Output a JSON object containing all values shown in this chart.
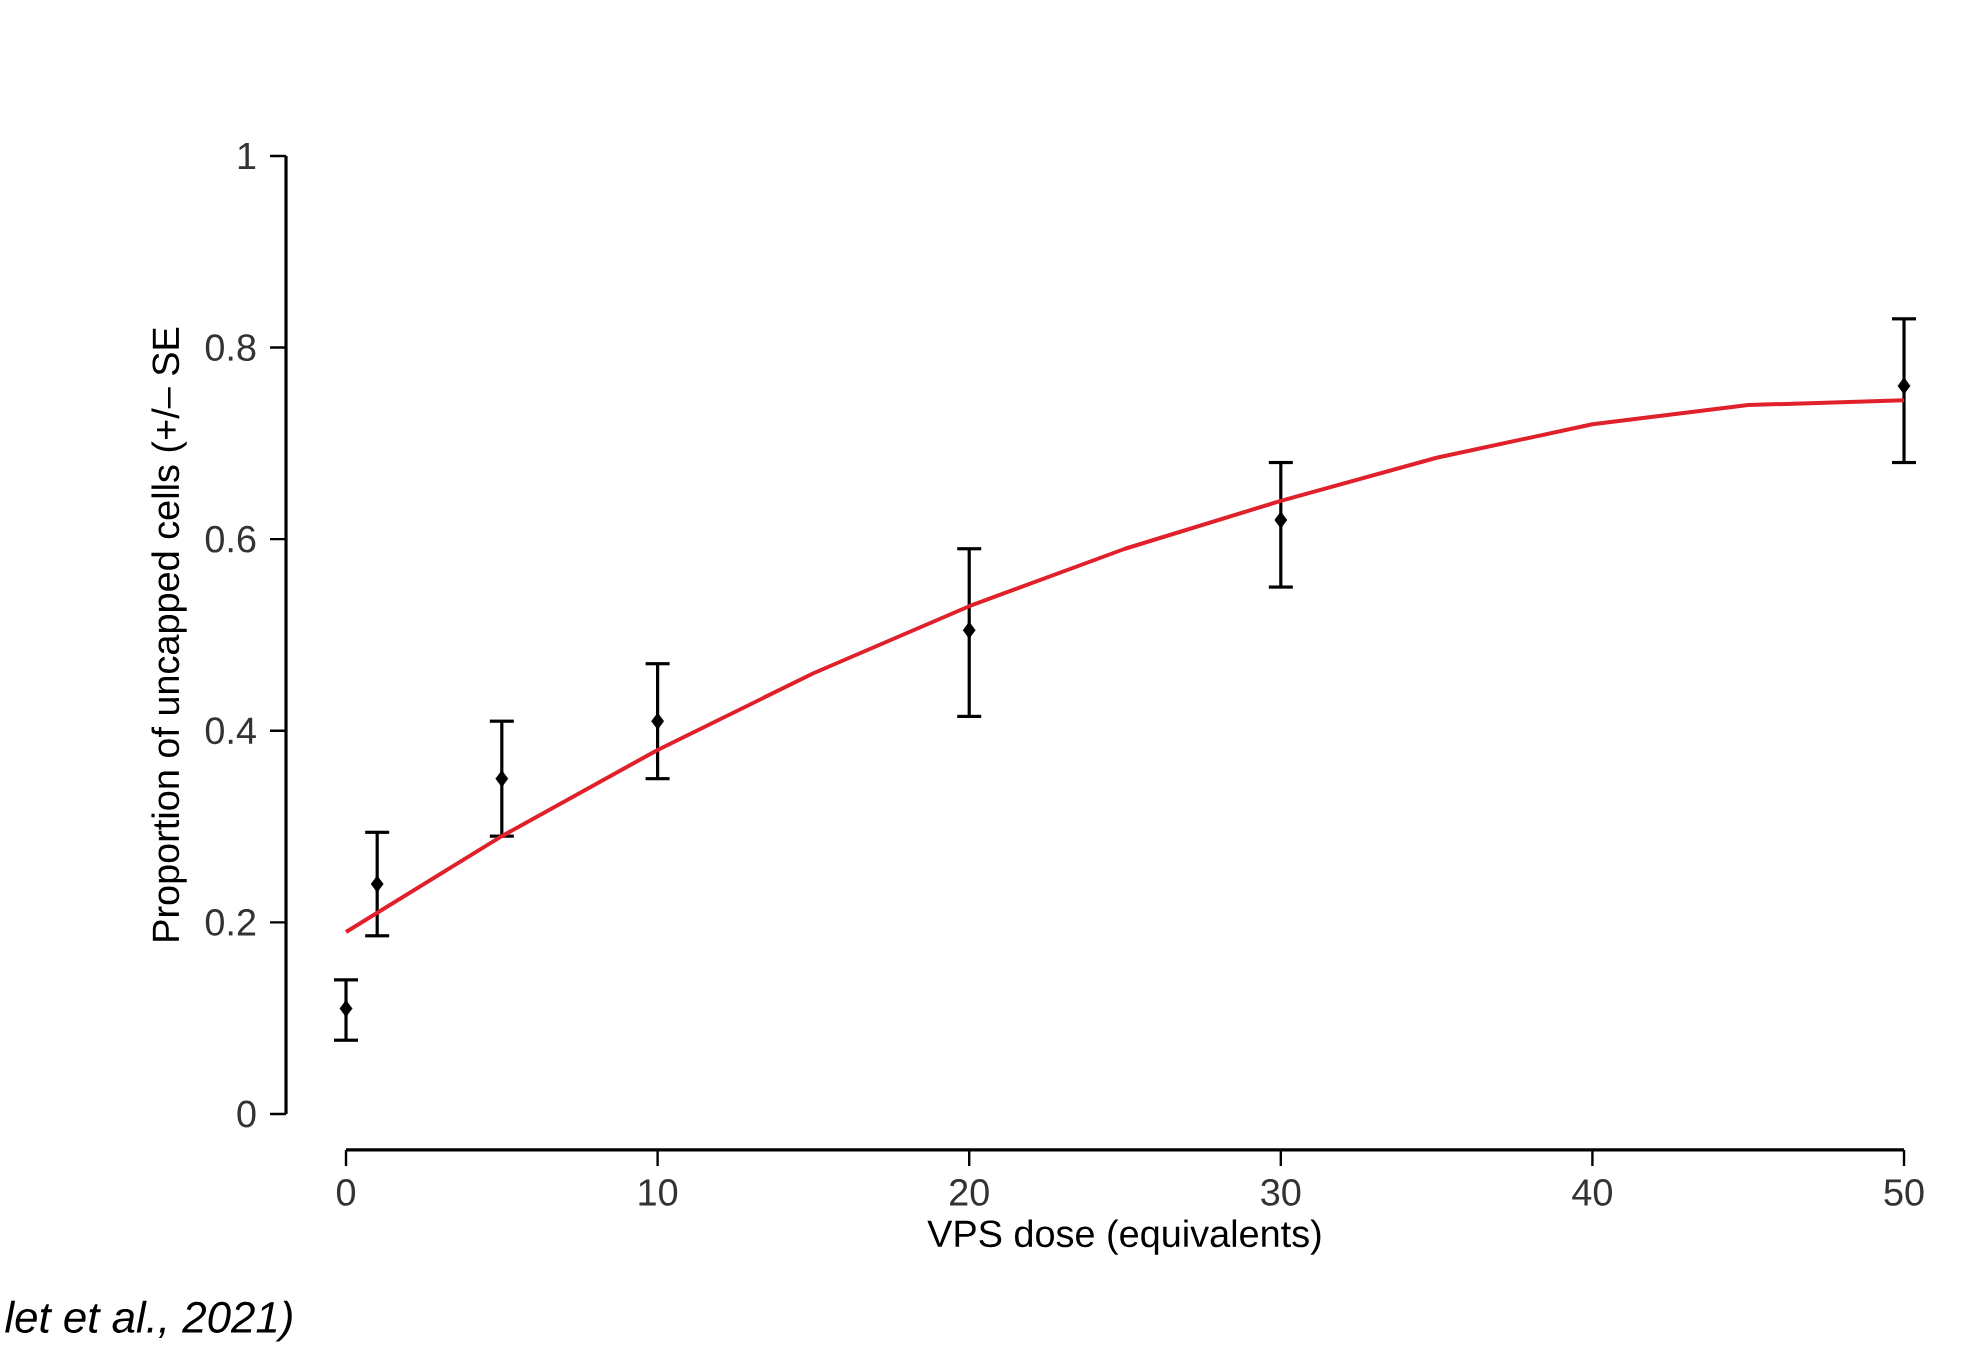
{
  "chart_data": {
    "type": "scatter",
    "xlabel": "VPS dose (equivalents)",
    "ylabel": "Proportion of uncapped cells (+/– SE",
    "annotations": [
      "let et al., 2021)"
    ],
    "xlim": [
      0,
      50
    ],
    "xticks": [
      0,
      10,
      20,
      30,
      40,
      50
    ],
    "ylim": [
      0,
      1
    ],
    "yticks": [
      0,
      0.2,
      0.4,
      0.6,
      0.8,
      1
    ],
    "grid": false,
    "series": [
      {
        "color": "#000000",
        "marker": "diamond",
        "x": [
          0,
          1,
          5,
          10,
          20,
          30,
          50
        ],
        "values": [
          0.11,
          0.24,
          0.35,
          0.41,
          0.505,
          0.62,
          0.76
        ],
        "errors": [
          [
            0.077,
            0.14
          ],
          [
            0.186,
            0.294
          ],
          [
            0.29,
            0.41
          ],
          [
            0.35,
            0.47
          ],
          [
            0.415,
            0.59
          ],
          [
            0.55,
            0.68
          ],
          [
            0.68,
            0.83
          ]
        ]
      },
      {
        "type": "line",
        "color": "#e0202a",
        "marker": "none",
        "line_style": "solid",
        "x": [
          0,
          5,
          10,
          15,
          20,
          25,
          30,
          35,
          40,
          45,
          50
        ],
        "values": [
          0.19,
          0.29,
          0.38,
          0.46,
          0.53,
          0.59,
          0.64,
          0.685,
          0.72,
          0.74,
          0.745
        ]
      }
    ]
  }
}
